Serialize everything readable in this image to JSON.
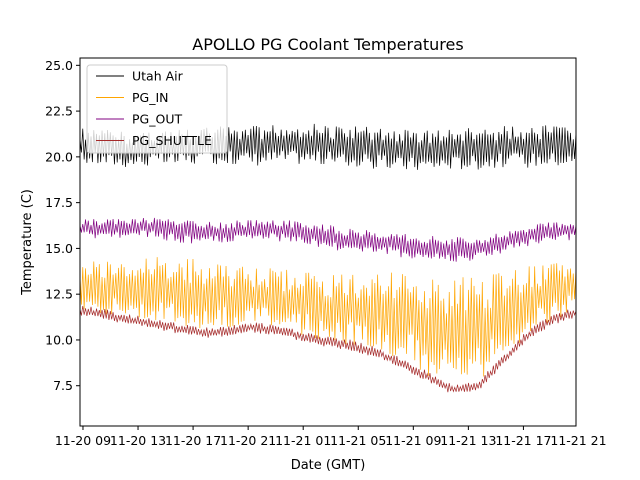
{
  "chart_data": {
    "type": "line",
    "title": "APOLLO PG Coolant Temperatures",
    "xlabel": "Date (GMT)",
    "ylabel": "Temperature (C)",
    "ylim": [
      5.3,
      25.4
    ],
    "xlim": [
      0,
      1.0
    ],
    "yticks": [
      7.5,
      10.0,
      12.5,
      15.0,
      17.5,
      20.0,
      22.5,
      25.0
    ],
    "ytick_labels": [
      "7.5",
      "10.0",
      "12.5",
      "15.0",
      "17.5",
      "20.0",
      "22.5",
      "25.0"
    ],
    "xtick_labels": [
      "11-20 09",
      "11-20 13",
      "11-20 17",
      "11-20 21",
      "11-21 01",
      "11-21 05",
      "11-21 09",
      "11-21 13",
      "11-21 17",
      "11-21 21"
    ],
    "xtick_pos": [
      0.006,
      0.117,
      0.228,
      0.339,
      0.45,
      0.561,
      0.672,
      0.783,
      0.894,
      1.005
    ],
    "legend_position": "top-left",
    "series": [
      {
        "name": "Utah Air",
        "color": "#000000",
        "x": [
          0,
          0.05,
          0.1,
          0.15,
          0.2,
          0.25,
          0.3,
          0.35,
          0.4,
          0.45,
          0.5,
          0.55,
          0.6,
          0.65,
          0.7,
          0.75,
          0.8,
          0.85,
          0.9,
          0.95,
          1.0
        ],
        "lo": [
          19.6,
          19.5,
          19.4,
          19.5,
          19.5,
          19.6,
          19.6,
          19.5,
          19.6,
          19.6,
          19.5,
          19.4,
          19.3,
          19.2,
          19.2,
          19.3,
          19.3,
          19.4,
          19.4,
          19.5,
          19.4
        ],
        "hi": [
          21.6,
          21.5,
          21.4,
          21.5,
          21.5,
          21.6,
          21.7,
          21.7,
          21.8,
          21.8,
          21.8,
          21.7,
          21.6,
          21.5,
          21.5,
          21.5,
          21.6,
          21.7,
          21.8,
          21.7,
          21.6
        ]
      },
      {
        "name": "PG_IN",
        "color": "#ffa500",
        "x": [
          0,
          0.05,
          0.1,
          0.15,
          0.2,
          0.25,
          0.3,
          0.35,
          0.4,
          0.45,
          0.5,
          0.55,
          0.6,
          0.65,
          0.7,
          0.75,
          0.8,
          0.85,
          0.9,
          0.95,
          1.0
        ],
        "lo": [
          11.6,
          11.4,
          11.2,
          11.0,
          10.6,
          10.4,
          10.6,
          10.8,
          10.5,
          10.2,
          9.9,
          9.7,
          9.4,
          8.8,
          8.0,
          7.3,
          7.5,
          8.9,
          10.2,
          11.0,
          11.5
        ],
        "hi": [
          14.4,
          14.3,
          14.5,
          14.6,
          14.6,
          14.4,
          14.1,
          14.0,
          13.9,
          13.8,
          13.6,
          13.6,
          13.7,
          13.7,
          13.6,
          13.5,
          13.5,
          13.7,
          14.0,
          14.3,
          14.5
        ]
      },
      {
        "name": "PG_OUT",
        "color": "#800080",
        "x": [
          0,
          0.05,
          0.1,
          0.15,
          0.2,
          0.25,
          0.3,
          0.35,
          0.4,
          0.45,
          0.5,
          0.55,
          0.6,
          0.65,
          0.7,
          0.75,
          0.8,
          0.85,
          0.9,
          0.95,
          1.0
        ],
        "lo": [
          15.6,
          15.5,
          15.6,
          15.5,
          15.3,
          15.2,
          15.3,
          15.4,
          15.4,
          15.2,
          14.9,
          14.8,
          14.7,
          14.5,
          14.3,
          14.2,
          14.3,
          14.7,
          15.1,
          15.3,
          15.4
        ],
        "hi": [
          16.6,
          16.6,
          16.7,
          16.8,
          16.6,
          16.5,
          16.5,
          16.6,
          16.6,
          16.5,
          16.3,
          16.1,
          16.0,
          15.9,
          15.7,
          15.6,
          15.7,
          15.9,
          16.2,
          16.5,
          16.6
        ]
      },
      {
        "name": "PG_SHUTTLE",
        "color": "#a52a2a",
        "x": [
          0,
          0.05,
          0.1,
          0.15,
          0.2,
          0.25,
          0.3,
          0.35,
          0.4,
          0.45,
          0.5,
          0.55,
          0.6,
          0.65,
          0.7,
          0.75,
          0.8,
          0.85,
          0.9,
          0.95,
          1.0
        ],
        "lo": [
          11.3,
          11.1,
          10.8,
          10.6,
          10.3,
          10.1,
          10.2,
          10.4,
          10.2,
          9.9,
          9.6,
          9.4,
          9.0,
          8.4,
          7.7,
          7.0,
          7.1,
          8.5,
          9.9,
          10.8,
          11.2
        ],
        "hi": [
          11.9,
          11.7,
          11.4,
          11.2,
          10.9,
          10.7,
          10.8,
          11.0,
          10.8,
          10.5,
          10.2,
          10.0,
          9.6,
          9.0,
          8.3,
          7.6,
          7.7,
          9.1,
          10.5,
          11.4,
          11.8
        ]
      }
    ]
  }
}
